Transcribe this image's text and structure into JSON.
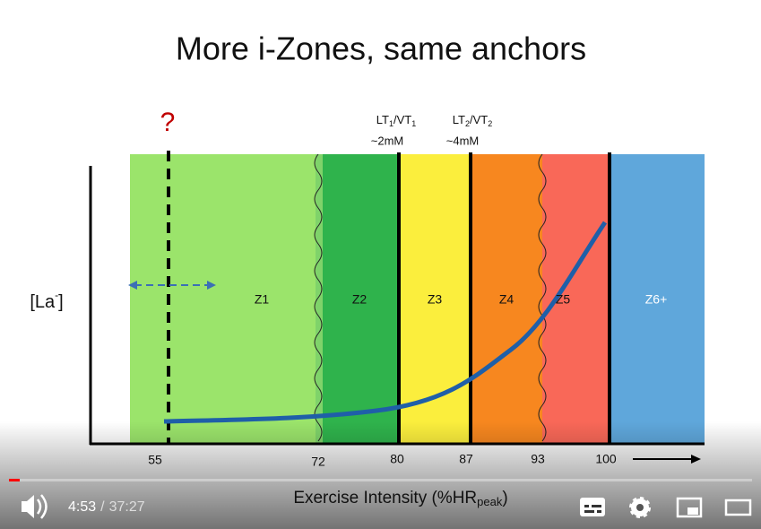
{
  "slide": {
    "title": "More i-Zones, same anchors",
    "question": "?",
    "y_label": {
      "text": "[La",
      "sup": "-",
      "close": "]"
    },
    "x_label": {
      "text": "Exercise Intensity (%HR",
      "sub": "peak",
      "close": ")"
    },
    "thresholds": [
      {
        "parts": [
          "LT",
          "1",
          "/VT",
          "1"
        ],
        "note": "~2mM"
      },
      {
        "parts": [
          "LT",
          "2",
          "/VT",
          "2"
        ],
        "note": "~4mM"
      }
    ],
    "zones": [
      "Z1",
      "Z2",
      "Z3",
      "Z4",
      "Z5",
      "Z6+"
    ],
    "ticks": [
      "55",
      "72",
      "80",
      "87",
      "93",
      "100"
    ]
  },
  "player": {
    "current": "4:53",
    "separator": "/",
    "duration": "37:27"
  }
}
